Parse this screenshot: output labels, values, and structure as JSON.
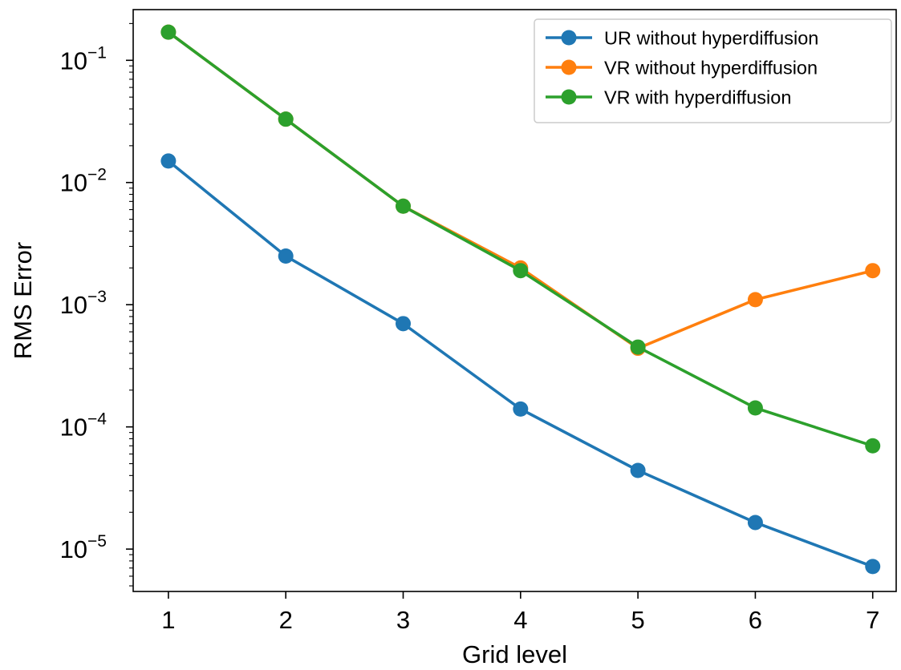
{
  "chart_data": {
    "type": "line",
    "title": "",
    "xlabel": "Grid level",
    "ylabel": "RMS Error",
    "yscale": "log",
    "grid": false,
    "legend_position": "top-right",
    "x": [
      1,
      2,
      3,
      4,
      5,
      6,
      7
    ],
    "xlim": [
      0.7,
      7.2
    ],
    "ylim": [
      4.5e-06,
      0.26
    ],
    "x_ticks": [
      1,
      2,
      3,
      4,
      5,
      6,
      7
    ],
    "y_ticks": [
      {
        "value": 0.1,
        "base": "10",
        "exp": "−1"
      },
      {
        "value": 0.01,
        "base": "10",
        "exp": "−2"
      },
      {
        "value": 0.001,
        "base": "10",
        "exp": "−3"
      },
      {
        "value": 0.0001,
        "base": "10",
        "exp": "−4"
      },
      {
        "value": 1e-05,
        "base": "10",
        "exp": "−5"
      }
    ],
    "series": [
      {
        "name": "UR without hyperdiffusion",
        "color": "#1f77b4",
        "values": [
          0.015,
          0.0025,
          0.0007,
          0.00014,
          4.4e-05,
          1.65e-05,
          7.2e-06
        ]
      },
      {
        "name": "VR without hyperdiffusion",
        "color": "#ff7f0e",
        "values": [
          0.17,
          0.033,
          0.0064,
          0.002,
          0.00044,
          0.0011,
          0.0019
        ]
      },
      {
        "name": "VR with hyperdiffusion",
        "color": "#2ca02c",
        "values": [
          0.17,
          0.033,
          0.0064,
          0.0019,
          0.00045,
          0.000143,
          7e-05
        ]
      }
    ]
  }
}
